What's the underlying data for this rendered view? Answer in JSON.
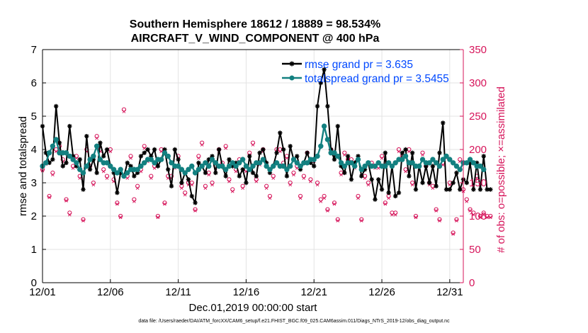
{
  "chart_data": {
    "type": "line",
    "title": "Southern Hemisphere 18612 / 18889 = 98.534%",
    "subtitle": "AIRCRAFT_V_WIND_COMPONENT @ 400 hPa",
    "xlabel": "Dec.01,2019 00:00:00 start",
    "ylabel": "rmse and totalspread",
    "y2label": "# of obs: o=possible; ×=assimilated",
    "x_tick_labels": [
      "12/01",
      "12/06",
      "12/11",
      "12/16",
      "12/21",
      "12/26",
      "12/31"
    ],
    "x_ticks_day": [
      0,
      5,
      10,
      15,
      20,
      25,
      30
    ],
    "xlim": [
      0,
      31
    ],
    "ylim": [
      0,
      7
    ],
    "y2lim": [
      0,
      350
    ],
    "y_ticks": [
      0,
      1,
      2,
      3,
      4,
      5,
      6,
      7
    ],
    "y2_ticks": [
      0,
      50,
      100,
      150,
      200,
      250,
      300,
      350
    ],
    "grid": true,
    "legend_position": "top-right",
    "colors": {
      "rmse": "#000000",
      "totalspread": "#138080",
      "legend_text": "#0048ff",
      "obs": "#d6145a",
      "axis": "#000000"
    },
    "series": [
      {
        "name": "rmse grand pr = 3.635",
        "marker": "asterisk",
        "x_start": 0.0,
        "x_step": 0.25,
        "values": [
          4.7,
          3.9,
          3.6,
          3.7,
          5.3,
          4.2,
          3.5,
          3.6,
          4.7,
          3.8,
          3.5,
          3.7,
          2.8,
          4.4,
          3.4,
          3.7,
          3.3,
          4.2,
          3.8,
          4.0,
          3.5,
          3.3,
          2.7,
          3.3,
          3.2,
          3.6,
          3.5,
          3.2,
          3.3,
          3.8,
          3.9,
          4.0,
          3.8,
          4.0,
          3.5,
          3.7,
          4.0,
          3.4,
          2.9,
          4.0,
          3.7,
          3.0,
          3.3,
          3.1,
          2.6,
          2.4,
          3.6,
          3.5,
          3.3,
          3.7,
          3.8,
          3.3,
          4.0,
          3.5,
          3.2,
          3.7,
          3.5,
          3.6,
          3.2,
          3.4,
          3.0,
          3.8,
          3.3,
          3.2,
          3.9,
          4.0,
          3.6,
          3.3,
          3.5,
          3.9,
          4.5,
          4.0,
          3.2,
          4.1,
          3.7,
          3.8,
          3.4,
          3.6,
          3.9,
          3.6,
          3.5,
          5.3,
          6.0,
          6.4,
          5.3,
          4.0,
          3.7,
          4.7,
          3.5,
          3.3,
          3.8,
          3.1,
          3.6,
          3.8,
          3.2,
          3.4,
          3.6,
          3.1,
          2.5,
          3.1,
          2.8,
          3.9,
          2.7,
          3.5,
          2.6,
          2.7,
          3.9,
          4.0,
          3.2,
          3.9,
          2.8,
          3.5,
          3.0,
          3.5,
          3.0,
          3.5,
          2.9,
          3.9,
          4.8,
          2.8,
          2.8,
          3.0,
          3.3,
          2.8,
          3.1,
          3.0,
          3.6,
          2.8,
          3.6,
          2.8,
          3.8,
          2.8,
          2.8
        ]
      },
      {
        "name": "totalspread grand pr = 3.5455",
        "marker": "circle",
        "x_start": 0.0,
        "x_step": 0.25,
        "values": [
          3.5,
          3.6,
          3.9,
          4.1,
          4.3,
          3.9,
          3.9,
          3.9,
          3.8,
          3.7,
          3.6,
          3.4,
          3.3,
          3.5,
          3.7,
          3.8,
          4.1,
          3.7,
          3.6,
          3.6,
          3.5,
          3.4,
          3.3,
          3.4,
          3.2,
          3.3,
          3.4,
          3.4,
          3.4,
          3.5,
          3.6,
          3.7,
          3.7,
          3.6,
          3.7,
          3.7,
          3.9,
          3.8,
          3.6,
          3.5,
          3.5,
          3.4,
          3.3,
          3.4,
          3.5,
          3.3,
          3.4,
          3.5,
          3.6,
          3.5,
          3.7,
          3.6,
          3.5,
          3.5,
          3.4,
          3.5,
          3.6,
          3.5,
          3.6,
          3.7,
          3.5,
          3.4,
          3.5,
          3.6,
          3.6,
          3.7,
          3.5,
          3.4,
          3.5,
          3.6,
          3.5,
          3.5,
          3.4,
          3.5,
          3.7,
          3.6,
          3.5,
          3.6,
          3.6,
          3.7,
          3.7,
          3.8,
          4.1,
          4.7,
          4.3,
          3.9,
          3.9,
          3.8,
          3.6,
          3.5,
          3.6,
          3.6,
          3.5,
          3.7,
          3.4,
          3.5,
          3.6,
          3.5,
          3.5,
          3.6,
          3.5,
          3.5,
          3.6,
          3.5,
          3.6,
          3.7,
          3.7,
          3.8,
          3.6,
          3.6,
          3.5,
          3.5,
          3.7,
          3.6,
          3.6,
          3.7,
          3.6,
          3.5,
          3.7,
          3.8,
          3.7,
          3.6,
          3.5,
          3.4,
          3.6,
          3.6,
          3.7,
          3.6,
          3.5,
          3.5,
          3.4
        ]
      }
    ],
    "obs_series": [
      {
        "name": "possible",
        "axis": "right",
        "marker": "o",
        "x_start": 0.0,
        "x_step": 0.25,
        "values": [
          170,
          180,
          130,
          165,
          200,
          205,
          185,
          125,
          105,
          175,
          190,
          160,
          95,
          200,
          175,
          150,
          220,
          200,
          170,
          160,
          200,
          155,
          120,
          100,
          260,
          160,
          190,
          125,
          145,
          170,
          205,
          185,
          160,
          175,
          100,
          200,
          120,
          160,
          160,
          175,
          190,
          145,
          135,
          150,
          150,
          110,
          190,
          210,
          145,
          165,
          150,
          175,
          200,
          180,
          205,
          155,
          140,
          170,
          185,
          145,
          170,
          195,
          210,
          155,
          180,
          200,
          145,
          130,
          160,
          200,
          200,
          180,
          190,
          150,
          165,
          175,
          130,
          160,
          195,
          155,
          185,
          150,
          125,
          130,
          110,
          200,
          120,
          95,
          165,
          195,
          185,
          185,
          175,
          130,
          95,
          160,
          150,
          180,
          175,
          175,
          190,
          120,
          130,
          105,
          105,
          200,
          190,
          170,
          200,
          150,
          100,
          175,
          195,
          175,
          150,
          145,
          110,
          95,
          180,
          190,
          150,
          75,
          95,
          185,
          140,
          125,
          110,
          105,
          160,
          100,
          105,
          100,
          100
        ]
      },
      {
        "name": "assimilated",
        "axis": "right",
        "marker": "x",
        "x_start": 0.0,
        "x_step": 0.25,
        "values": [
          168,
          178,
          128,
          162,
          197,
          202,
          182,
          123,
          102,
          172,
          187,
          157,
          93,
          197,
          172,
          147,
          217,
          197,
          167,
          157,
          197,
          152,
          118,
          98,
          257,
          157,
          187,
          122,
          142,
          167,
          202,
          182,
          157,
          172,
          98,
          197,
          118,
          157,
          157,
          172,
          187,
          142,
          132,
          147,
          147,
          108,
          187,
          207,
          142,
          162,
          147,
          172,
          197,
          177,
          202,
          152,
          137,
          167,
          182,
          142,
          167,
          192,
          207,
          152,
          177,
          197,
          142,
          127,
          157,
          197,
          197,
          177,
          187,
          147,
          162,
          172,
          127,
          157,
          192,
          152,
          182,
          147,
          122,
          127,
          108,
          197,
          118,
          93,
          162,
          192,
          182,
          182,
          172,
          127,
          93,
          157,
          147,
          177,
          172,
          172,
          187,
          118,
          127,
          102,
          102,
          197,
          187,
          167,
          197,
          147,
          98,
          172,
          192,
          172,
          147,
          142,
          108,
          93,
          177,
          187,
          147,
          73,
          93,
          182,
          137,
          122,
          108,
          102,
          157,
          98,
          102,
          98,
          98
        ]
      }
    ]
  },
  "footer": "data file: /Users/raeder/DAI/ATM_forcXX/CAM6_setup/f.e21.FHIST_BGC.f09_025.CAM6assim.011/Diags_NTrS_2019-12/obs_diag_output.nc"
}
